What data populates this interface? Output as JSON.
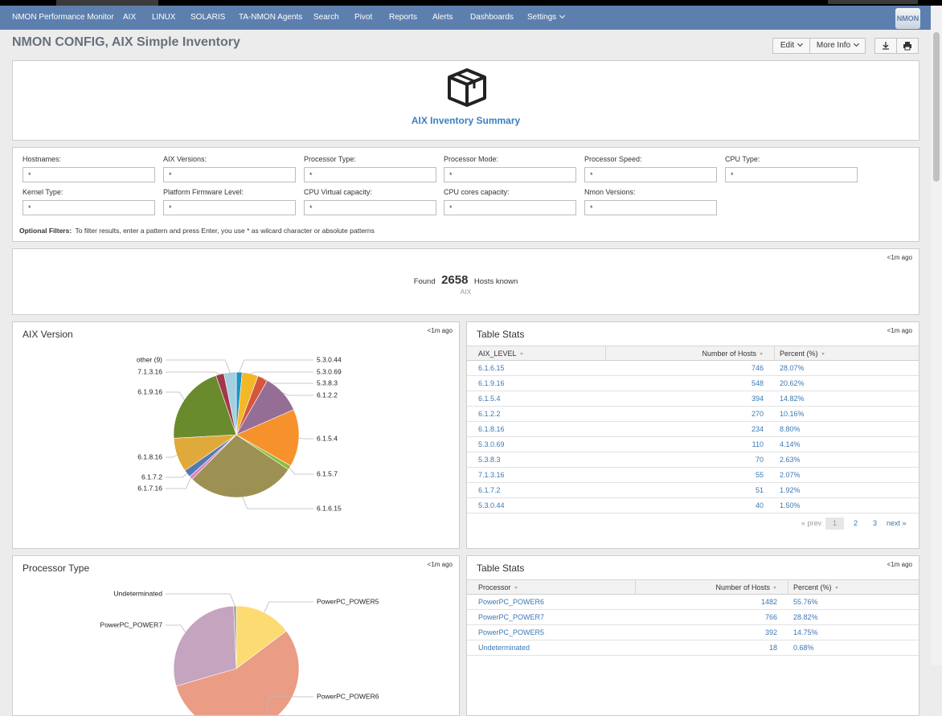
{
  "nav": {
    "items": [
      "NMON Performance Monitor",
      "AIX",
      "LINUX",
      "SOLARIS",
      "TA-NMON Agents",
      "Search",
      "Pivot",
      "Reports",
      "Alerts",
      "Dashboards",
      "Settings"
    ],
    "logo": "NMON"
  },
  "header": {
    "title": "NMON CONFIG, AIX Simple Inventory",
    "buttons": [
      "Edit",
      "More Info"
    ]
  },
  "summary": {
    "title": "AIX Inventory Summary"
  },
  "filters": {
    "fields": [
      {
        "label": "Hostnames:",
        "value": "*"
      },
      {
        "label": "AIX Versions:",
        "value": "*"
      },
      {
        "label": "Processor Type:",
        "value": "*"
      },
      {
        "label": "Processor Mode:",
        "value": "*"
      },
      {
        "label": "Processor Speed:",
        "value": "*"
      },
      {
        "label": "CPU Type:",
        "value": "*"
      },
      {
        "label": "Kernel Type:",
        "value": "*"
      },
      {
        "label": "Platform Firmware Level:",
        "value": "*"
      },
      {
        "label": "CPU Virtual capacity:",
        "value": "*"
      },
      {
        "label": "CPU cores capacity:",
        "value": "*"
      },
      {
        "label": "Nmon Versions:",
        "value": "*"
      }
    ],
    "note_label": "Optional Filters:",
    "note": "To filter results, enter a pattern and press Enter, you use * as wilcard character or absolute patterns"
  },
  "found": {
    "time": "<1m ago",
    "prefix": "Found",
    "count": 2658,
    "suffix": "Hosts known",
    "subtitle": "AIX"
  },
  "aix_version_pie": {
    "title": "AIX Version",
    "time": "<1m ago",
    "labels": [
      "5.3.0.44",
      "5.3.0.69",
      "5.3.8.3",
      "6.1.2.2",
      "6.1.5.4",
      "6.1.5.7",
      "6.1.6.15",
      "6.1.7.16",
      "6.1.7.2",
      "6.1.8.16",
      "6.1.9.16",
      "7.1.3.16",
      "other (9)"
    ],
    "values": [
      40,
      110,
      70,
      270,
      394,
      30,
      746,
      25,
      51,
      234,
      548,
      55,
      85
    ],
    "colors": [
      "#1e93c6",
      "#f2b827",
      "#d6563c",
      "#956e96",
      "#f7912c",
      "#8cbd3a",
      "#9c9152",
      "#d984c4",
      "#5479af",
      "#e0a93b",
      "#6a8a2e",
      "#a1374a",
      "#a4cfdf"
    ]
  },
  "aix_table": {
    "title": "Table Stats",
    "time": "<1m ago",
    "columns": [
      "AIX_LEVEL",
      "Number of Hosts",
      "Percent (%)"
    ],
    "rows": [
      [
        "6.1.6.15",
        746,
        "28.07%"
      ],
      [
        "6.1.9.16",
        548,
        "20.62%"
      ],
      [
        "6.1.5.4",
        394,
        "14.82%"
      ],
      [
        "6.1.2.2",
        270,
        "10.16%"
      ],
      [
        "6.1.8.16",
        234,
        "8.80%"
      ],
      [
        "5.3.0.69",
        110,
        "4.14%"
      ],
      [
        "5.3.8.3",
        70,
        "2.63%"
      ],
      [
        "7.1.3.16",
        55,
        "2.07%"
      ],
      [
        "6.1.7.2",
        51,
        "1.92%"
      ],
      [
        "5.3.0.44",
        40,
        "1.50%"
      ]
    ],
    "pagination": [
      "« prev",
      "1",
      "2",
      "3",
      "next »"
    ]
  },
  "processor_pie": {
    "title": "Processor Type",
    "time": "<1m ago",
    "labels": [
      "PowerPC_POWER5",
      "PowerPC_POWER6",
      "PowerPC_POWER7",
      "Undeterminated"
    ],
    "values": [
      392,
      1482,
      766,
      18
    ],
    "colors": [
      "#fcdc72",
      "#eb9c84",
      "#c4a4bf",
      "#a0a0a0"
    ]
  },
  "processor_table": {
    "title": "Table Stats",
    "time": "<1m ago",
    "columns": [
      "Processor",
      "Number of Hosts",
      "Percent (%)"
    ],
    "rows": [
      [
        "PowerPC_POWER6",
        1482,
        "55.76%"
      ],
      [
        "PowerPC_POWER7",
        766,
        "28.82%"
      ],
      [
        "PowerPC_POWER5",
        392,
        "14.75%"
      ],
      [
        "Undeterminated",
        18,
        "0.68%"
      ]
    ]
  }
}
